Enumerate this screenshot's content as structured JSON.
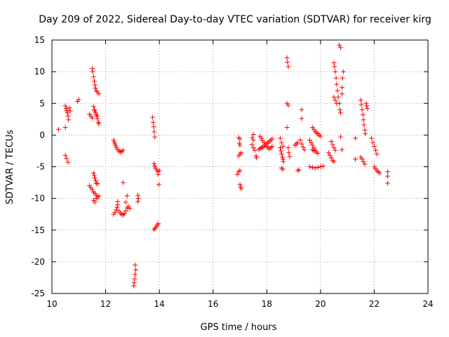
{
  "chart_data": {
    "type": "scatter",
    "title": "Day 209 of 2022, Sidereal Day-to-day VTEC variation (SDTVAR) for receiver kirg",
    "xlabel": "GPS time / hours",
    "ylabel": "SDTVAR / TECUs",
    "xlim": [
      10,
      24
    ],
    "ylim": [
      -25,
      15
    ],
    "xticks": [
      10,
      12,
      14,
      16,
      18,
      20,
      22,
      24
    ],
    "yticks": [
      15,
      10,
      5,
      0,
      -5,
      -10,
      -15,
      -20,
      -25
    ],
    "grid": true,
    "marker": "+",
    "color": "#ff0000",
    "series": [
      {
        "name": "SDTVAR",
        "points": [
          [
            10.25,
            0.9
          ],
          [
            10.5,
            4.6
          ],
          [
            10.53,
            4.2
          ],
          [
            10.55,
            3.9
          ],
          [
            10.58,
            3.5
          ],
          [
            10.6,
            3.0
          ],
          [
            10.62,
            2.4
          ],
          [
            10.5,
            1.2
          ],
          [
            10.65,
            4.3
          ],
          [
            10.68,
            3.8
          ],
          [
            10.5,
            -3.2
          ],
          [
            10.55,
            -3.7
          ],
          [
            10.6,
            -4.3
          ],
          [
            10.95,
            5.3
          ],
          [
            11.0,
            5.6
          ],
          [
            11.4,
            3.3
          ],
          [
            11.45,
            3.0
          ],
          [
            11.5,
            2.7
          ],
          [
            11.5,
            10.5
          ],
          [
            11.52,
            10.0
          ],
          [
            11.55,
            9.2
          ],
          [
            11.58,
            8.5
          ],
          [
            11.6,
            7.9
          ],
          [
            11.62,
            7.4
          ],
          [
            11.65,
            7.0
          ],
          [
            11.7,
            6.8
          ],
          [
            11.75,
            6.5
          ],
          [
            11.55,
            4.5
          ],
          [
            11.58,
            4.0
          ],
          [
            11.6,
            3.8
          ],
          [
            11.63,
            3.5
          ],
          [
            11.65,
            3.2
          ],
          [
            11.68,
            3.0
          ],
          [
            11.7,
            2.6
          ],
          [
            11.73,
            2.0
          ],
          [
            11.75,
            1.8
          ],
          [
            11.4,
            -8.0
          ],
          [
            11.45,
            -8.3
          ],
          [
            11.5,
            -8.6
          ],
          [
            11.55,
            -9.0
          ],
          [
            11.6,
            -9.2
          ],
          [
            11.65,
            -9.5
          ],
          [
            11.7,
            -9.8
          ],
          [
            11.75,
            -9.6
          ],
          [
            11.55,
            -6.0
          ],
          [
            11.58,
            -6.4
          ],
          [
            11.6,
            -6.8
          ],
          [
            11.63,
            -7.2
          ],
          [
            11.65,
            -7.6
          ],
          [
            11.7,
            -7.7
          ],
          [
            11.55,
            -10.3
          ],
          [
            11.6,
            -10.6
          ],
          [
            11.65,
            -10.0
          ],
          [
            12.3,
            -0.8
          ],
          [
            12.32,
            -1.1
          ],
          [
            12.35,
            -1.4
          ],
          [
            12.38,
            -1.7
          ],
          [
            12.4,
            -2.0
          ],
          [
            12.45,
            -2.3
          ],
          [
            12.5,
            -2.5
          ],
          [
            12.55,
            -2.7
          ],
          [
            12.6,
            -2.6
          ],
          [
            12.65,
            -2.4
          ],
          [
            12.65,
            -7.5
          ],
          [
            12.3,
            -12.5
          ],
          [
            12.35,
            -12.2
          ],
          [
            12.4,
            -11.8
          ],
          [
            12.43,
            -11.4
          ],
          [
            12.45,
            -11.0
          ],
          [
            12.45,
            -10.5
          ],
          [
            12.5,
            -12.0
          ],
          [
            12.55,
            -12.3
          ],
          [
            12.6,
            -12.5
          ],
          [
            12.65,
            -12.6
          ],
          [
            12.7,
            -12.4
          ],
          [
            12.75,
            -12.0
          ],
          [
            12.8,
            -11.5
          ],
          [
            12.85,
            -11.3
          ],
          [
            12.9,
            -11.6
          ],
          [
            12.75,
            -10.6
          ],
          [
            12.8,
            -9.6
          ],
          [
            13.1,
            -20.5
          ],
          [
            13.12,
            -21.3
          ],
          [
            13.1,
            -22.0
          ],
          [
            13.08,
            -22.7
          ],
          [
            13.06,
            -23.3
          ],
          [
            13.05,
            -23.8
          ],
          [
            13.2,
            -9.5
          ],
          [
            13.22,
            -10.0
          ],
          [
            13.2,
            -10.5
          ],
          [
            13.75,
            2.8
          ],
          [
            13.77,
            2.0
          ],
          [
            13.79,
            1.3
          ],
          [
            13.81,
            0.5
          ],
          [
            13.83,
            -0.3
          ],
          [
            13.8,
            -4.5
          ],
          [
            13.83,
            -4.9
          ],
          [
            13.86,
            -5.2
          ],
          [
            13.9,
            -5.5
          ],
          [
            13.95,
            -5.8
          ],
          [
            14.0,
            -5.6
          ],
          [
            13.95,
            -6.2
          ],
          [
            13.98,
            -7.8
          ],
          [
            13.8,
            -14.9
          ],
          [
            13.84,
            -14.7
          ],
          [
            13.88,
            -14.5
          ],
          [
            13.92,
            -14.2
          ],
          [
            13.96,
            -14.0
          ],
          [
            16.95,
            -0.4
          ],
          [
            17.0,
            -0.6
          ],
          [
            16.98,
            -1.3
          ],
          [
            17.0,
            -1.6
          ],
          [
            16.95,
            -3.3
          ],
          [
            17.0,
            -3.0
          ],
          [
            17.05,
            -2.8
          ],
          [
            16.9,
            -6.2
          ],
          [
            16.95,
            -5.8
          ],
          [
            17.0,
            -5.6
          ],
          [
            17.0,
            -7.8
          ],
          [
            17.03,
            -8.2
          ],
          [
            17.05,
            -8.5
          ],
          [
            17.45,
            -0.4
          ],
          [
            17.5,
            -0.8
          ],
          [
            17.45,
            -1.5
          ],
          [
            17.5,
            -2.0
          ],
          [
            17.55,
            -2.4
          ],
          [
            17.5,
            0.1
          ],
          [
            17.6,
            -3.3
          ],
          [
            17.62,
            -3.6
          ],
          [
            17.75,
            -0.2
          ],
          [
            17.8,
            -0.5
          ],
          [
            17.85,
            -0.9
          ],
          [
            17.9,
            -1.2
          ],
          [
            17.95,
            -1.5
          ],
          [
            18.0,
            -1.8
          ],
          [
            18.05,
            -2.0
          ],
          [
            18.1,
            -2.2
          ],
          [
            18.15,
            -2.0
          ],
          [
            18.2,
            -1.8
          ],
          [
            17.7,
            -2.3
          ],
          [
            17.75,
            -2.1
          ],
          [
            17.8,
            -2.0
          ],
          [
            17.85,
            -1.9
          ],
          [
            17.9,
            -1.7
          ],
          [
            17.95,
            -1.5
          ],
          [
            18.0,
            -1.3
          ],
          [
            18.05,
            -1.2
          ],
          [
            18.1,
            -1.0
          ],
          [
            18.15,
            -0.8
          ],
          [
            18.2,
            -0.6
          ],
          [
            18.5,
            -2.0
          ],
          [
            18.53,
            -2.5
          ],
          [
            18.55,
            -3.0
          ],
          [
            18.58,
            -3.5
          ],
          [
            18.6,
            -3.8
          ],
          [
            18.62,
            -4.2
          ],
          [
            18.5,
            -0.5
          ],
          [
            18.55,
            -1.2
          ],
          [
            18.6,
            -1.8
          ],
          [
            18.55,
            -5.2
          ],
          [
            18.6,
            -5.4
          ],
          [
            18.75,
            12.2
          ],
          [
            18.77,
            11.5
          ],
          [
            18.8,
            10.8
          ],
          [
            18.75,
            5.0
          ],
          [
            18.8,
            4.7
          ],
          [
            18.75,
            1.2
          ],
          [
            18.8,
            -2.0
          ],
          [
            18.82,
            -2.8
          ],
          [
            18.85,
            -3.4
          ],
          [
            19.05,
            -1.6
          ],
          [
            19.1,
            -1.4
          ],
          [
            19.15,
            -1.2
          ],
          [
            19.15,
            -5.6
          ],
          [
            19.2,
            -5.5
          ],
          [
            19.3,
            4.0
          ],
          [
            19.3,
            2.6
          ],
          [
            19.25,
            -0.8
          ],
          [
            19.3,
            -1.4
          ],
          [
            19.35,
            -1.9
          ],
          [
            19.4,
            -2.3
          ],
          [
            19.6,
            -0.8
          ],
          [
            19.65,
            -1.2
          ],
          [
            19.7,
            -1.6
          ],
          [
            19.75,
            -2.0
          ],
          [
            19.8,
            -2.4
          ],
          [
            19.85,
            -2.7
          ],
          [
            19.9,
            -2.9
          ],
          [
            19.7,
            -2.3
          ],
          [
            19.75,
            -2.5
          ],
          [
            19.6,
            -5.0
          ],
          [
            19.7,
            -5.1
          ],
          [
            19.8,
            -5.2
          ],
          [
            19.9,
            -5.1
          ],
          [
            20.0,
            -5.0
          ],
          [
            20.1,
            -4.9
          ],
          [
            19.7,
            1.2
          ],
          [
            19.75,
            0.9
          ],
          [
            19.8,
            0.6
          ],
          [
            19.85,
            0.4
          ],
          [
            19.9,
            0.2
          ],
          [
            19.95,
            0.0
          ],
          [
            20.0,
            -0.2
          ],
          [
            20.3,
            -2.8
          ],
          [
            20.35,
            -3.2
          ],
          [
            20.4,
            -3.6
          ],
          [
            20.45,
            -4.0
          ],
          [
            20.5,
            -4.2
          ],
          [
            20.4,
            -1.0
          ],
          [
            20.45,
            -1.5
          ],
          [
            20.5,
            -2.0
          ],
          [
            20.55,
            -2.4
          ],
          [
            20.5,
            11.4
          ],
          [
            20.52,
            10.8
          ],
          [
            20.55,
            10.0
          ],
          [
            20.58,
            9.0
          ],
          [
            20.6,
            8.0
          ],
          [
            20.63,
            7.0
          ],
          [
            20.66,
            6.0
          ],
          [
            20.7,
            5.0
          ],
          [
            20.72,
            4.0
          ],
          [
            20.75,
            3.5
          ],
          [
            20.5,
            6.0
          ],
          [
            20.55,
            5.5
          ],
          [
            20.6,
            5.0
          ],
          [
            20.7,
            14.2
          ],
          [
            20.75,
            13.8
          ],
          [
            20.85,
            10.0
          ],
          [
            20.82,
            9.0
          ],
          [
            20.8,
            7.5
          ],
          [
            20.8,
            6.5
          ],
          [
            20.75,
            -0.3
          ],
          [
            20.8,
            -2.3
          ],
          [
            21.3,
            -0.5
          ],
          [
            21.3,
            -3.8
          ],
          [
            21.5,
            5.5
          ],
          [
            21.52,
            4.8
          ],
          [
            21.55,
            4.0
          ],
          [
            21.58,
            3.2
          ],
          [
            21.6,
            2.4
          ],
          [
            21.62,
            1.6
          ],
          [
            21.65,
            0.8
          ],
          [
            21.67,
            0.2
          ],
          [
            21.5,
            -3.5
          ],
          [
            21.55,
            -3.8
          ],
          [
            21.6,
            -4.2
          ],
          [
            21.65,
            -4.6
          ],
          [
            21.7,
            5.0
          ],
          [
            21.72,
            4.6
          ],
          [
            21.75,
            4.2
          ],
          [
            21.9,
            -0.5
          ],
          [
            21.95,
            -1.2
          ],
          [
            22.0,
            -1.8
          ],
          [
            22.05,
            -2.4
          ],
          [
            22.1,
            -3.0
          ],
          [
            22.0,
            -5.0
          ],
          [
            22.05,
            -5.3
          ],
          [
            22.1,
            -5.6
          ],
          [
            22.15,
            -5.8
          ],
          [
            22.2,
            -6.0
          ],
          [
            22.5,
            -5.8
          ],
          [
            22.5,
            -6.5
          ],
          [
            22.5,
            -7.6
          ]
        ]
      }
    ]
  }
}
